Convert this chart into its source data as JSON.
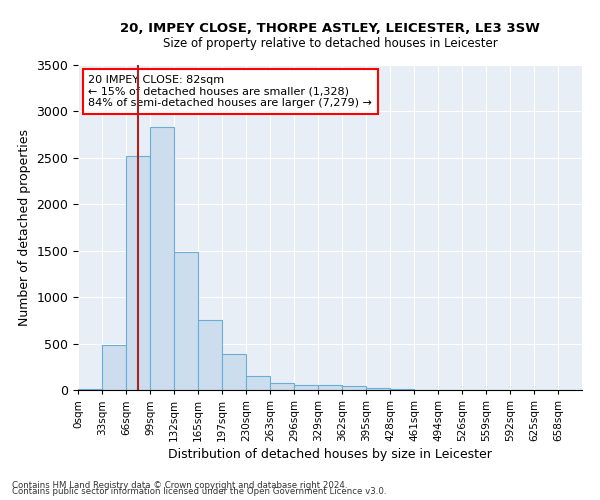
{
  "title_line1": "20, IMPEY CLOSE, THORPE ASTLEY, LEICESTER, LE3 3SW",
  "title_line2": "Size of property relative to detached houses in Leicester",
  "xlabel": "Distribution of detached houses by size in Leicester",
  "ylabel": "Number of detached properties",
  "bar_color": "#ccdded",
  "bar_edge_color": "#6aaed6",
  "annotation_line1": "20 IMPEY CLOSE: 82sqm",
  "annotation_line2": "← 15% of detached houses are smaller (1,328)",
  "annotation_line3": "84% of semi-detached houses are larger (7,279) →",
  "vline_color": "#aa2222",
  "categories": [
    "0sqm",
    "33sqm",
    "66sqm",
    "99sqm",
    "132sqm",
    "165sqm",
    "197sqm",
    "230sqm",
    "263sqm",
    "296sqm",
    "329sqm",
    "362sqm",
    "395sqm",
    "428sqm",
    "461sqm",
    "494sqm",
    "526sqm",
    "559sqm",
    "592sqm",
    "625sqm",
    "658sqm"
  ],
  "bar_values": [
    15,
    490,
    2520,
    2830,
    1490,
    750,
    390,
    155,
    80,
    50,
    55,
    40,
    20,
    8,
    0,
    0,
    0,
    0,
    0,
    0,
    0
  ],
  "vline_x_bin": 2,
  "ylim": [
    0,
    3500
  ],
  "yticks": [
    0,
    500,
    1000,
    1500,
    2000,
    2500,
    3000,
    3500
  ],
  "background_color": "#e8eef5",
  "grid_color": "#ffffff",
  "footnote1": "Contains HM Land Registry data © Crown copyright and database right 2024.",
  "footnote2": "Contains public sector information licensed under the Open Government Licence v3.0."
}
